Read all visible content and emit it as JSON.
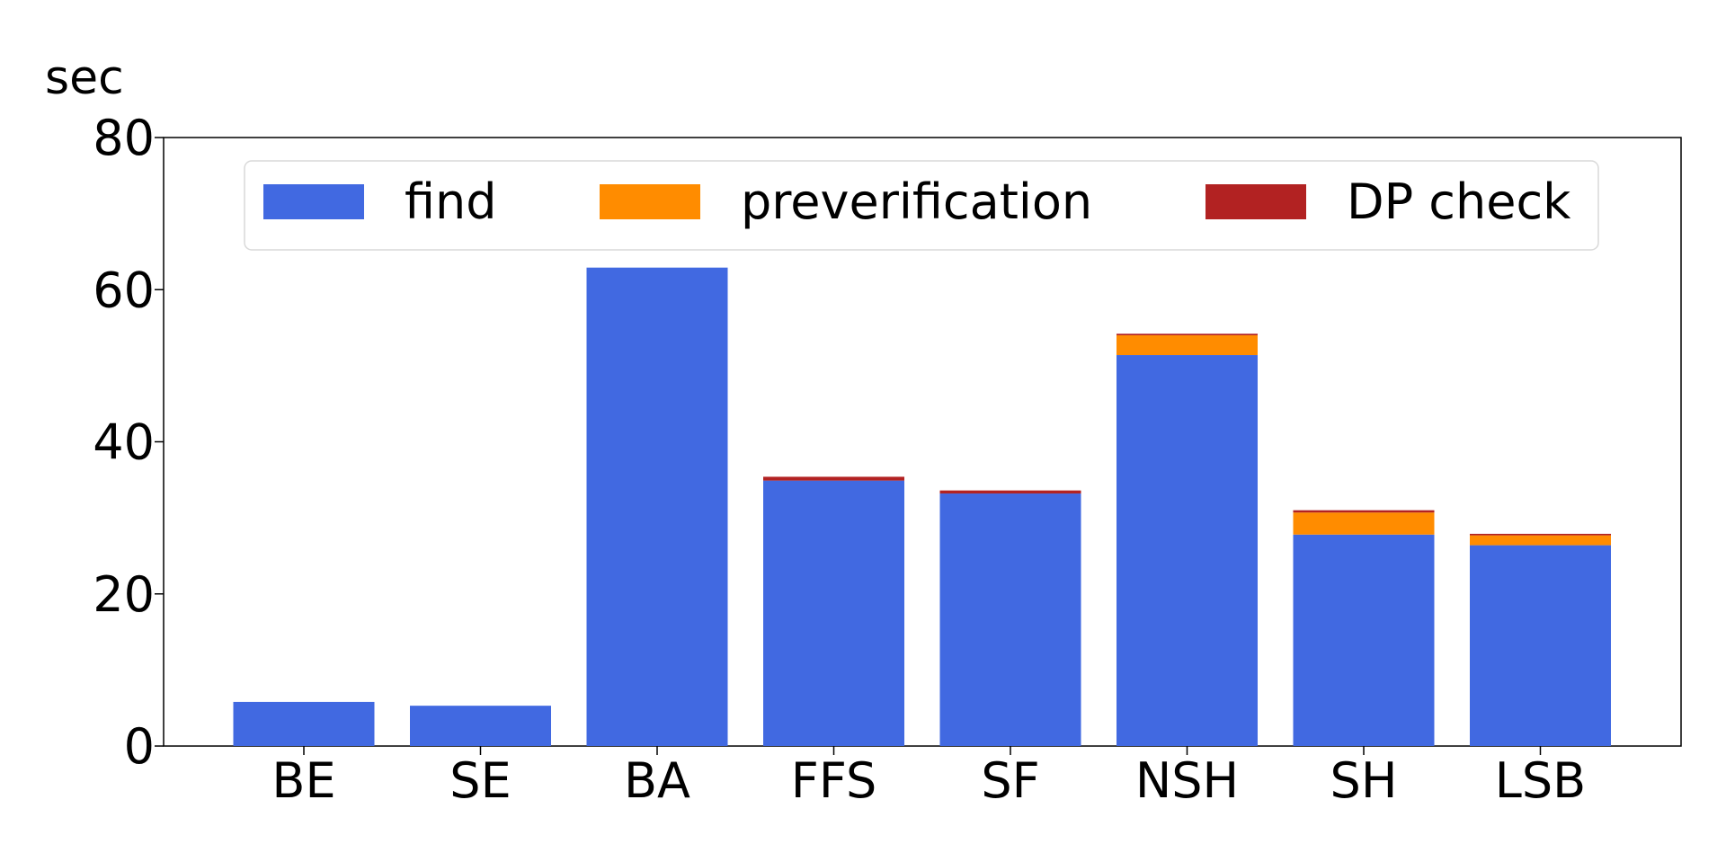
{
  "chart_data": {
    "type": "bar",
    "stacked": true,
    "title": "",
    "xlabel": "",
    "ylabel": "sec",
    "ylim": [
      0,
      80
    ],
    "yticks": [
      0,
      20,
      40,
      60,
      80
    ],
    "grid": false,
    "legend_position": "top",
    "categories": [
      "BE",
      "SE",
      "BA",
      "FFS",
      "SF",
      "NSH",
      "SH",
      "LSB"
    ],
    "series": [
      {
        "name": "find",
        "color": "#4169e1",
        "values": [
          5.8,
          5.3,
          62.9,
          34.9,
          33.2,
          51.4,
          27.8,
          26.4
        ]
      },
      {
        "name": "preverification",
        "color": "#ff8c00",
        "values": [
          0,
          0,
          0,
          0,
          0,
          2.6,
          2.9,
          1.3
        ]
      },
      {
        "name": "DP check",
        "color": "#b22222",
        "values": [
          0,
          0,
          0,
          0.5,
          0.4,
          0.2,
          0.3,
          0.2
        ]
      }
    ]
  }
}
